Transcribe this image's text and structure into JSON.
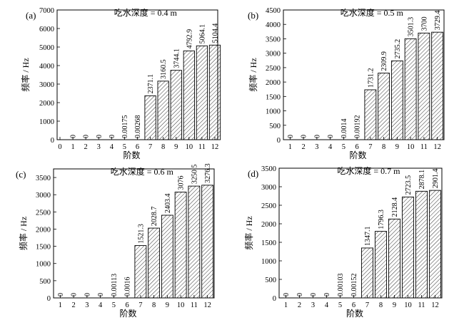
{
  "chart_data": [
    {
      "type": "bar",
      "panel_label": "(a)",
      "title": "吃水深度 = 0.4 m",
      "xlabel": "阶数",
      "ylabel": "频率 / Hz",
      "categories": [
        "1",
        "2",
        "3",
        "4",
        "5",
        "6",
        "7",
        "8",
        "9",
        "10",
        "11",
        "12"
      ],
      "values": [
        0,
        0,
        0,
        0,
        0.00175,
        0.00268,
        2371.1,
        3160.5,
        3744.1,
        4792.9,
        5064.1,
        5104.4
      ],
      "value_labels": [
        "0",
        "0",
        "0",
        "0",
        "0.00175",
        "0.00268",
        "2371.1",
        "3160.5",
        "3744.1",
        "4792.9",
        "5064.1",
        "5104.4"
      ],
      "ylim": [
        0,
        7000
      ],
      "yticks": [
        "0",
        "1000",
        "2000",
        "3000",
        "4000",
        "5000",
        "6000",
        "7000"
      ],
      "xticks": [
        "0",
        "1",
        "2",
        "3",
        "4",
        "5",
        "6",
        "7",
        "8",
        "9",
        "10",
        "11",
        "12"
      ],
      "bar_fill": "hatched"
    },
    {
      "type": "bar",
      "panel_label": "(b)",
      "title": "吃水深度 = 0.5 m",
      "xlabel": "阶数",
      "ylabel": "频率 / Hz",
      "categories": [
        "1",
        "2",
        "3",
        "4",
        "5",
        "6",
        "7",
        "8",
        "9",
        "10",
        "11",
        "12"
      ],
      "values": [
        0,
        0,
        0,
        0,
        0.0014,
        0.00192,
        1731.2,
        2309.9,
        2735.2,
        3501.3,
        3700,
        3729.4
      ],
      "value_labels": [
        "0",
        "0",
        "0",
        "0",
        "0.0014",
        "0.00192",
        "1731.2",
        "2309.9",
        "2735.2",
        "3501.3",
        "3700",
        "3729.4"
      ],
      "ylim": [
        0,
        4500
      ],
      "yticks": [
        "0",
        "500",
        "1000",
        "1500",
        "2000",
        "2500",
        "3000",
        "3500",
        "4000",
        "4500"
      ],
      "xticks": [
        "1",
        "2",
        "3",
        "4",
        "5",
        "6",
        "7",
        "8",
        "9",
        "10",
        "11",
        "12"
      ],
      "bar_fill": "hatched"
    },
    {
      "type": "bar",
      "panel_label": "(c)",
      "title": "吃水深度 = 0.6 m",
      "xlabel": "阶数",
      "ylabel": "频率 / Hz",
      "categories": [
        "1",
        "2",
        "3",
        "4",
        "5",
        "6",
        "7",
        "8",
        "9",
        "10",
        "11",
        "12"
      ],
      "values": [
        0,
        0,
        0,
        0,
        0.00113,
        0.0016,
        1521.3,
        2028.7,
        2403.4,
        3076,
        3250.5,
        3276.3
      ],
      "value_labels": [
        "0",
        "0",
        "0",
        "0",
        "0.00113",
        "0.0016",
        "1521.3",
        "2028.7",
        "2403.4",
        "3076",
        "3250.5",
        "3276.3"
      ],
      "ylim": [
        0,
        3750
      ],
      "yticks": [
        "0",
        "500",
        "1000",
        "1500",
        "2000",
        "2500",
        "3000",
        "3500"
      ],
      "xticks": [
        "1",
        "2",
        "3",
        "4",
        "5",
        "6",
        "7",
        "8",
        "9",
        "10",
        "11",
        "12"
      ],
      "bar_fill": "hatched"
    },
    {
      "type": "bar",
      "panel_label": "(d)",
      "title": "吃水深度 = 0.7 m",
      "xlabel": "阶数",
      "ylabel": "频率 / Hz",
      "categories": [
        "1",
        "2",
        "3",
        "4",
        "5",
        "6",
        "7",
        "8",
        "9",
        "10",
        "11",
        "12"
      ],
      "values": [
        0,
        0,
        0,
        0,
        0.00103,
        0.00152,
        1347.1,
        1796.3,
        2128.4,
        2723.5,
        2878.1,
        2901.4
      ],
      "value_labels": [
        "0",
        "0",
        "0",
        "0",
        "0.00103",
        "0.00152",
        "1347.1",
        "1796.3",
        "2128.4",
        "2723.5",
        "2878.1",
        "2901.4"
      ],
      "ylim": [
        0,
        3500
      ],
      "yticks": [
        "0",
        "500",
        "1000",
        "1500",
        "2000",
        "2500",
        "3000",
        "3500"
      ],
      "xticks": [
        "1",
        "2",
        "3",
        "4",
        "5",
        "6",
        "7",
        "8",
        "9",
        "10",
        "11",
        "12"
      ],
      "bar_fill": "hatched"
    }
  ]
}
